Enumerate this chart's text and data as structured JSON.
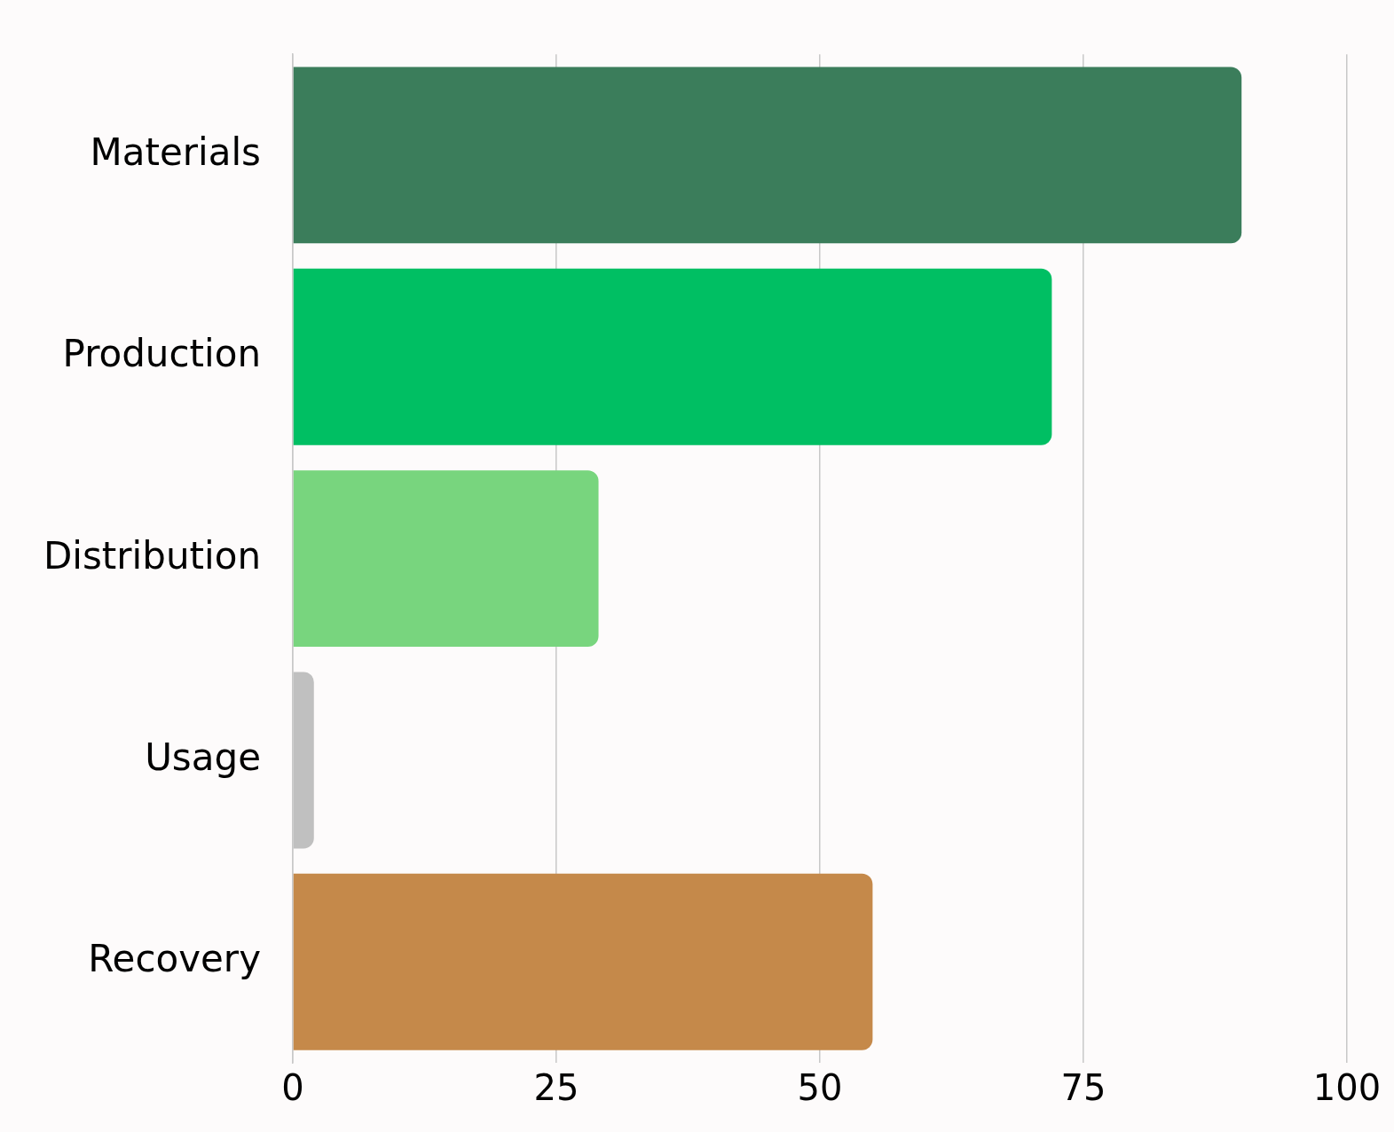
{
  "chart_data": {
    "type": "bar",
    "orientation": "horizontal",
    "categories": [
      "Materials",
      "Production",
      "Distribution",
      "Usage",
      "Recovery"
    ],
    "values": [
      90,
      72,
      29,
      2,
      55
    ],
    "colors": [
      "#3b7d5b",
      "#00bf63",
      "#78d57e",
      "#c0c0c0",
      "#c5894a"
    ],
    "xlim": [
      0,
      100
    ],
    "xticks": [
      0,
      25,
      50,
      75,
      100
    ],
    "grid": "x",
    "legend": false
  }
}
